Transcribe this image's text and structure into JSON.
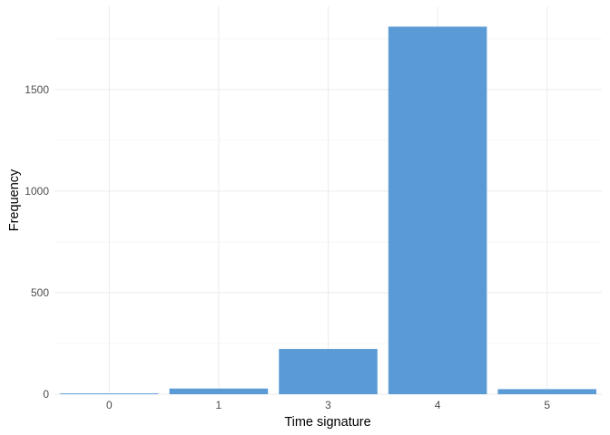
{
  "chart_data": {
    "type": "bar",
    "title": "",
    "xlabel": "Time signature",
    "ylabel": "Frequency",
    "categories": [
      "0",
      "1",
      "3",
      "4",
      "5"
    ],
    "values": [
      4,
      28,
      223,
      1810,
      25
    ],
    "ylim": [
      0,
      1910
    ],
    "y_ticks": [
      0,
      500,
      1000,
      1500
    ],
    "grid": true,
    "legend": "none",
    "bar_color": "#5b9bd5",
    "background": "#ffffff"
  }
}
